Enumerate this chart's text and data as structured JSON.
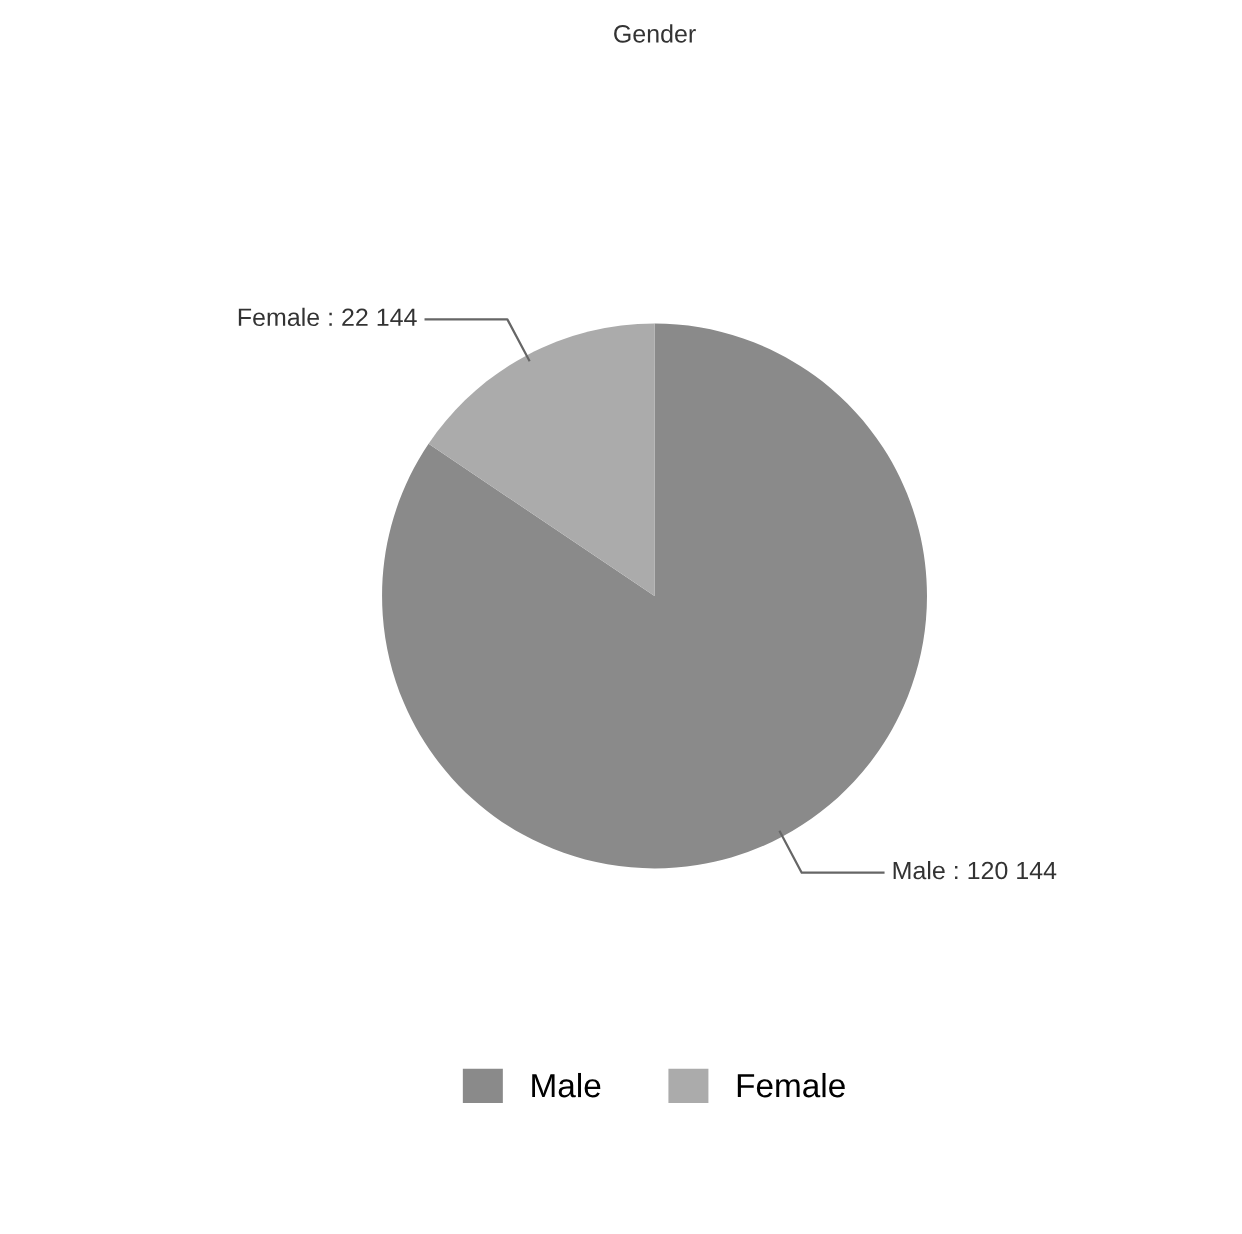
{
  "chart_data": {
    "type": "pie",
    "title": "Gender",
    "categories": [
      "Male",
      "Female"
    ],
    "values": [
      120144,
      22144
    ],
    "colors": [
      "#8a8a8a",
      "#ababab"
    ],
    "value_labels": [
      "Male : 120 144",
      "Female : 22 144"
    ],
    "legend": "bottom"
  }
}
